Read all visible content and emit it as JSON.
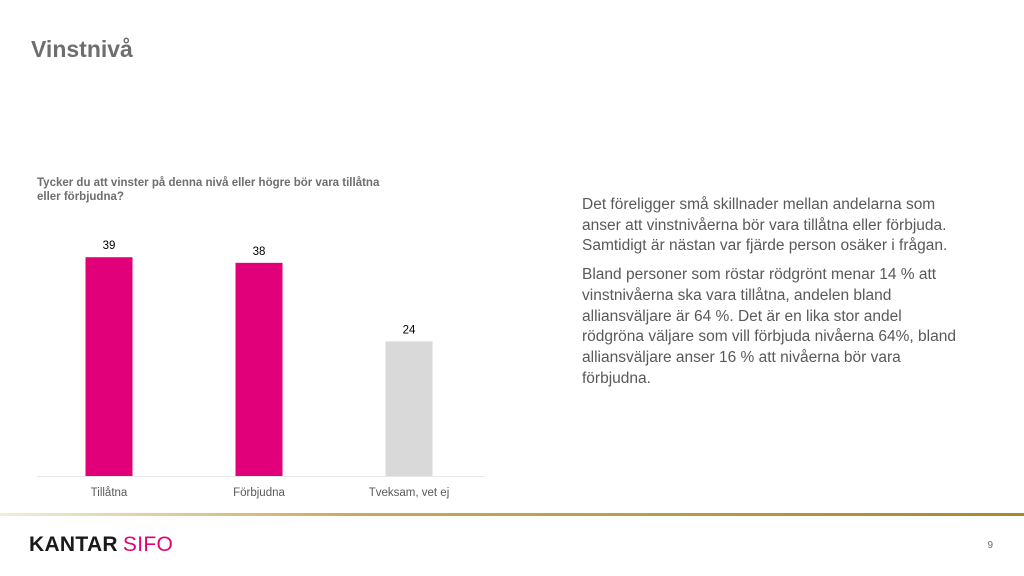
{
  "slide": {
    "title": "Vinstnivå",
    "page_number": "9"
  },
  "colors": {
    "accent": "#e2007a",
    "neutral_bar": "#d9d9d9",
    "text_gray": "#6e6e6e"
  },
  "chart_data": {
    "type": "bar",
    "title": "Tycker du att vinster på denna nivå eller högre bör vara tillåtna eller förbjudna?",
    "categories": [
      "Tillåtna",
      "Förbjudna",
      "Tveksam, vet ej"
    ],
    "values": [
      39,
      38,
      24
    ],
    "bar_colors": [
      "#e2007a",
      "#e2007a",
      "#d9d9d9"
    ],
    "xlabel": "",
    "ylabel": "",
    "ylim": [
      0,
      41
    ],
    "grid": false
  },
  "commentary": {
    "paragraph_1": "Det föreligger små skillnader mellan andelarna som anser att vinstnivåerna bör vara tillåtna eller förbjuda. Samtidigt är nästan var fjärde person osäker i frågan.",
    "paragraph_2": "Bland personer som röstar rödgrönt menar 14 % att vinstnivåerna ska vara tillåtna, andelen bland alliansväljare är 64 %. Det är en lika stor andel rödgröna väljare som vill förbjuda nivåerna 64%, bland alliansväljare anser 16 % att nivåerna bör vara förbjudna."
  },
  "footer": {
    "logo_kantar": "KANTAR",
    "logo_sifo": "SIFO"
  }
}
